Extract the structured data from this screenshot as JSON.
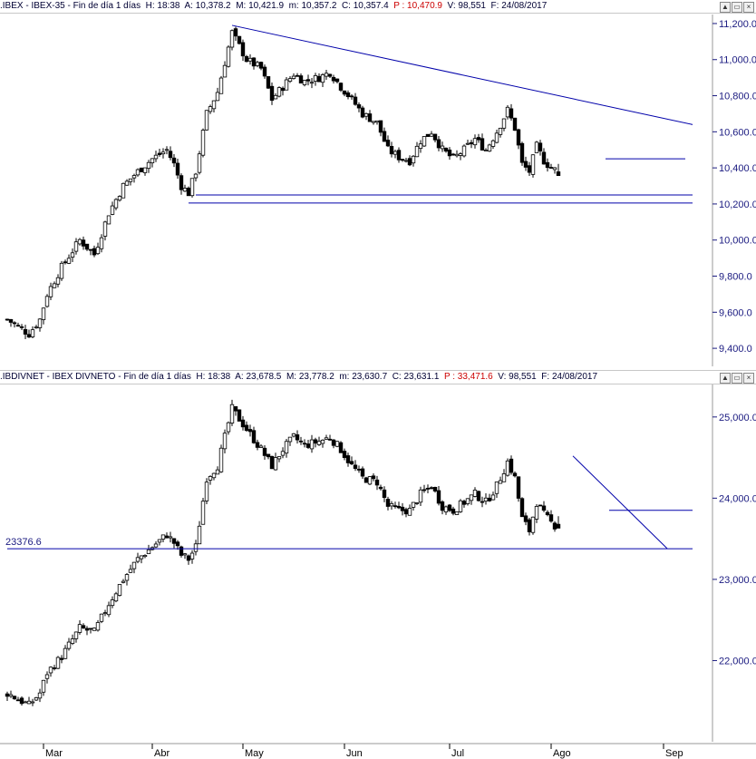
{
  "top_header": {
    "symbol": ".IBEX - IBEX-35 - Fin de día 1 días",
    "h": "H: 18:38",
    "a": "A: 10,378.2",
    "m": "M: 10,421.9",
    "mn": "m: 10,357.2",
    "c": "C: 10,357.4",
    "p": "P : 10,470.9",
    "v": "V: 98,551",
    "f": "F: 24/08/2017"
  },
  "bottom_header": {
    "symbol": ".IBDIVNET - IBEX DIVNETO - Fin de día 1 días",
    "h": "H: 18:38",
    "a": "A: 23,678.5",
    "m": "M: 23,778.2",
    "mn": "m: 23,630.7",
    "c": "C: 23,631.1",
    "p": "P : 33,471.6",
    "v": "V: 98,551",
    "f": "F: 24/08/2017"
  },
  "pane_buttons": [
    "▲",
    "▭",
    "×"
  ],
  "colors": {
    "axis": "#1a1a80",
    "trendline": "#0000aa",
    "candle": "#000000",
    "header_p": "#cc0000"
  },
  "chart_data": [
    {
      "type": "candlestick",
      "title": ".IBEX - IBEX-35",
      "ylim": [
        9300,
        11250
      ],
      "yticks": [
        9400,
        9600,
        9800,
        10000,
        10200,
        10400,
        10600,
        10800,
        11000,
        11200
      ],
      "ytick_labels": [
        "9,400.0",
        "9,600.0",
        "9,800.0",
        "10,000.0",
        "10,200.0",
        "10,400.0",
        "10,600.0",
        "10,800.0",
        "11,000.0",
        "11,200.0"
      ],
      "x": [
        "Mar",
        "Abr",
        "May",
        "Jun",
        "Jul",
        "Ago",
        "Sep"
      ],
      "waypoints": [
        [
          0,
          9560
        ],
        [
          6,
          9480
        ],
        [
          9,
          9560
        ],
        [
          11,
          9700
        ],
        [
          15,
          9850
        ],
        [
          20,
          10000
        ],
        [
          24,
          9920
        ],
        [
          28,
          10150
        ],
        [
          32,
          10300
        ],
        [
          36,
          10380
        ],
        [
          40,
          10450
        ],
        [
          44,
          10500
        ],
        [
          46,
          10420
        ],
        [
          48,
          10300
        ],
        [
          50,
          10260
        ],
        [
          52,
          10380
        ],
        [
          55,
          10700
        ],
        [
          58,
          10820
        ],
        [
          62,
          11150
        ],
        [
          66,
          11000
        ],
        [
          70,
          10950
        ],
        [
          73,
          10780
        ],
        [
          76,
          10850
        ],
        [
          79,
          10920
        ],
        [
          82,
          10880
        ],
        [
          86,
          10900
        ],
        [
          89,
          10930
        ],
        [
          92,
          10850
        ],
        [
          95,
          10780
        ],
        [
          98,
          10700
        ],
        [
          102,
          10650
        ],
        [
          105,
          10500
        ],
        [
          108,
          10460
        ],
        [
          111,
          10440
        ],
        [
          114,
          10550
        ],
        [
          117,
          10600
        ],
        [
          120,
          10500
        ],
        [
          123,
          10450
        ],
        [
          126,
          10500
        ],
        [
          129,
          10560
        ],
        [
          132,
          10500
        ],
        [
          135,
          10600
        ],
        [
          138,
          10720
        ],
        [
          140,
          10620
        ],
        [
          142,
          10420
        ],
        [
          144,
          10380
        ],
        [
          146,
          10520
        ],
        [
          148,
          10440
        ],
        [
          150,
          10400
        ],
        [
          152,
          10380
        ]
      ],
      "trendlines": [
        {
          "from": [
            62,
            11190
          ],
          "to": [
            189,
            10640
          ]
        },
        {
          "from": [
            52,
            10250
          ],
          "to": [
            189,
            10250
          ]
        },
        {
          "from": [
            50,
            10205
          ],
          "to": [
            189,
            10205
          ]
        },
        {
          "from": [
            165,
            10450
          ],
          "to": [
            187,
            10450
          ]
        }
      ],
      "last": {
        "open": 10378.2,
        "high": 10421.9,
        "low": 10357.2,
        "close": 10357.4
      }
    },
    {
      "type": "candlestick",
      "title": ".IBDIVNET - IBEX DIVNETO",
      "ylim": [
        21000,
        25400
      ],
      "yticks": [
        22000,
        23000,
        24000,
        25000
      ],
      "ytick_labels": [
        "22,000.0",
        "23,000.0",
        "24,000.0",
        "25,000.0"
      ],
      "x": [
        "Mar",
        "Abr",
        "May",
        "Jun",
        "Jul",
        "Ago",
        "Sep"
      ],
      "waypoints": [
        [
          0,
          21600
        ],
        [
          6,
          21450
        ],
        [
          9,
          21600
        ],
        [
          11,
          21850
        ],
        [
          15,
          22050
        ],
        [
          20,
          22400
        ],
        [
          24,
          22350
        ],
        [
          28,
          22700
        ],
        [
          32,
          23000
        ],
        [
          36,
          23250
        ],
        [
          40,
          23400
        ],
        [
          44,
          23550
        ],
        [
          46,
          23450
        ],
        [
          48,
          23300
        ],
        [
          50,
          23250
        ],
        [
          52,
          23400
        ],
        [
          55,
          24250
        ],
        [
          58,
          24400
        ],
        [
          62,
          25100
        ],
        [
          66,
          24850
        ],
        [
          70,
          24600
        ],
        [
          73,
          24400
        ],
        [
          76,
          24600
        ],
        [
          79,
          24750
        ],
        [
          82,
          24650
        ],
        [
          86,
          24700
        ],
        [
          89,
          24750
        ],
        [
          92,
          24600
        ],
        [
          95,
          24400
        ],
        [
          98,
          24250
        ],
        [
          102,
          24200
        ],
        [
          105,
          23900
        ],
        [
          108,
          23850
        ],
        [
          111,
          23850
        ],
        [
          114,
          24050
        ],
        [
          117,
          24150
        ],
        [
          120,
          23900
        ],
        [
          123,
          23850
        ],
        [
          126,
          23950
        ],
        [
          129,
          24050
        ],
        [
          132,
          23950
        ],
        [
          135,
          24150
        ],
        [
          138,
          24450
        ],
        [
          140,
          24250
        ],
        [
          142,
          23750
        ],
        [
          144,
          23600
        ],
        [
          146,
          23950
        ],
        [
          148,
          23800
        ],
        [
          150,
          23700
        ],
        [
          152,
          23631
        ]
      ],
      "hline_label": "23376.6",
      "hline_value": 23376.6,
      "trendlines": [
        {
          "from": [
            0,
            23376.6
          ],
          "to": [
            189,
            23376.6
          ]
        },
        {
          "from": [
            156,
            24520
          ],
          "to": [
            182,
            23380
          ]
        },
        {
          "from": [
            166,
            23850
          ],
          "to": [
            189,
            23850
          ]
        }
      ],
      "last": {
        "open": 23678.5,
        "high": 23778.2,
        "low": 23630.7,
        "close": 23631.1
      }
    }
  ]
}
